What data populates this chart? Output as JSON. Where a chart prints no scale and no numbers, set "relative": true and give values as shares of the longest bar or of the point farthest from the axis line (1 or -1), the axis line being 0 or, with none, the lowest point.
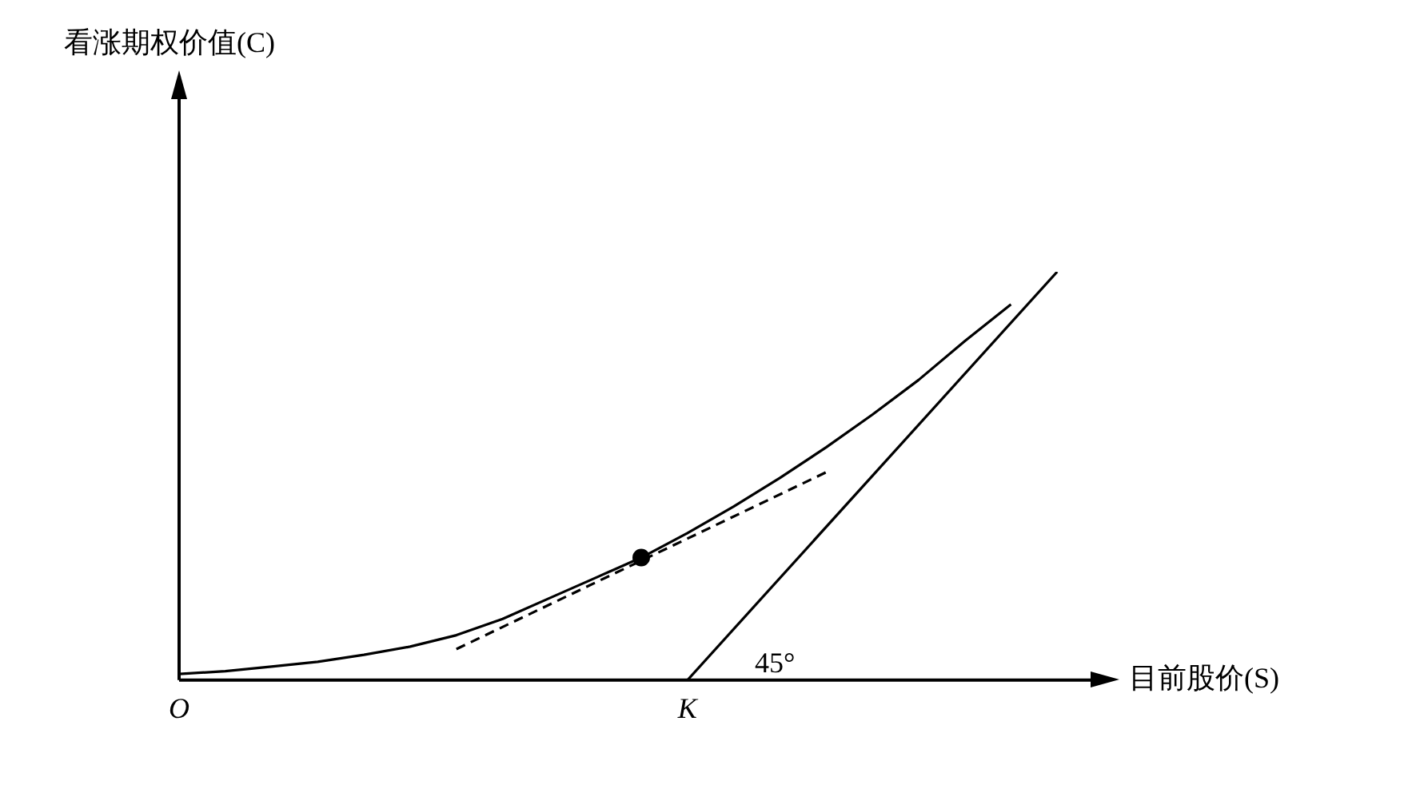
{
  "chart_data": {
    "type": "line",
    "relative": true,
    "xlabel": "目前股价(S)",
    "categories": [
      "O",
      null,
      null,
      null,
      null,
      null,
      null,
      null,
      null,
      null,
      null,
      "K",
      null,
      null,
      null,
      null,
      null,
      null,
      null,
      null,
      null
    ],
    "grid": false,
    "legend": false,
    "annotations": [
      "45°",
      "看涨期权价值(C)"
    ],
    "series": [
      {
        "color": "#000000",
        "line_style": "solid",
        "marker": "none",
        "values": [
          0.015,
          0.022,
          0.033,
          0.045,
          0.062,
          0.082,
          0.11,
          0.15,
          0.2,
          0.25,
          0.3,
          0.36,
          0.425,
          0.495,
          0.57,
          0.65,
          0.735,
          0.83,
          0.92,
          null,
          null
        ]
      },
      {
        "color": "#000000",
        "line_style": "solid",
        "marker": "none",
        "values": [
          null,
          null,
          null,
          null,
          null,
          null,
          null,
          null,
          null,
          null,
          null,
          0,
          null,
          null,
          null,
          null,
          null,
          null,
          null,
          1,
          null
        ]
      },
      {
        "color": "#000000",
        "line_style": "dashed",
        "marker": "none",
        "values": [
          null,
          null,
          null,
          null,
          null,
          null,
          0.076,
          null,
          null,
          null,
          null,
          null,
          null,
          null,
          0.509,
          null,
          null,
          null,
          null,
          null,
          null
        ]
      },
      {
        "type": "scatter",
        "color": "#000000",
        "marker": "circle",
        "values": [
          null,
          null,
          null,
          null,
          null,
          null,
          null,
          null,
          null,
          null,
          0.3,
          null,
          null,
          null,
          null,
          null,
          null,
          null,
          null,
          null,
          null
        ]
      }
    ]
  }
}
